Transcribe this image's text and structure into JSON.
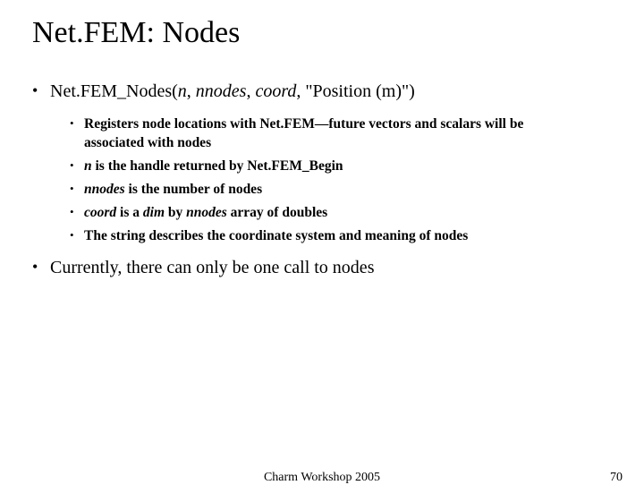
{
  "title": "Net.FEM: Nodes",
  "bullet1": {
    "prefix": "Net.FEM_Nodes(",
    "arg1": "n",
    "sep1": ", ",
    "arg2": "nnodes",
    "sep2": ", ",
    "arg3": "coord",
    "sep3": ", ",
    "tail": "\"Position (m)\")"
  },
  "sub": {
    "s1a": "Registers node locations with Net.FEM—future vectors and scalars will be",
    "s1b": "associated with nodes",
    "s2a": "n",
    "s2b": " is the handle returned by Net.FEM_Begin",
    "s3a": "nnodes",
    "s3b": " is the number of nodes",
    "s4a": "coord",
    "s4b": " is a ",
    "s4c": "dim",
    "s4d": " by ",
    "s4e": "nnodes",
    "s4f": " array of doubles",
    "s5": "The string describes the coordinate system and meaning of nodes"
  },
  "bullet2": "Currently, there can only be one call to nodes",
  "footer": {
    "center": "Charm Workshop 2005",
    "page": "70"
  }
}
